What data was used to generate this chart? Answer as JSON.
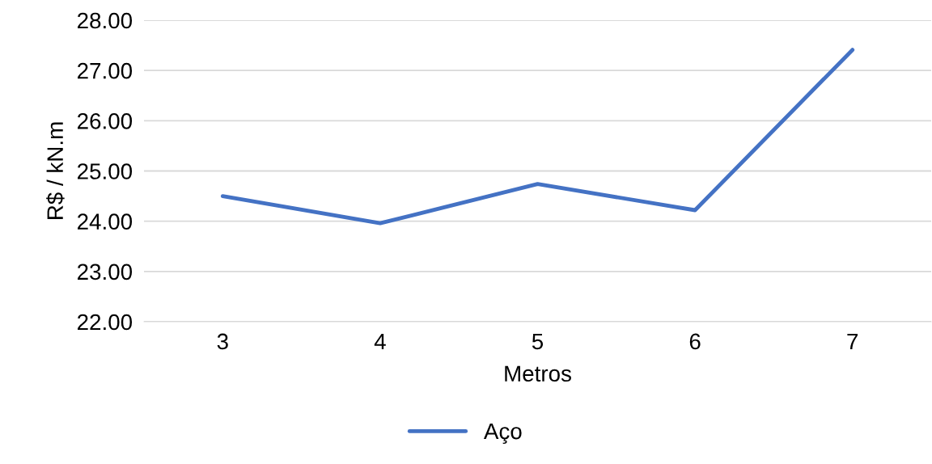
{
  "chart_data": {
    "type": "line",
    "xlabel": "Metros",
    "ylabel": "R$ / kN.m",
    "categories": [
      "3",
      "4",
      "5",
      "6",
      "7"
    ],
    "series": [
      {
        "name": "Aço",
        "color": "#4472c4",
        "values": [
          24.5,
          23.96,
          24.74,
          24.22,
          27.41
        ]
      }
    ],
    "ylim": [
      22,
      28
    ],
    "yticks": [
      {
        "value": 22,
        "label": "22.00"
      },
      {
        "value": 23,
        "label": "23.00"
      },
      {
        "value": 24,
        "label": "24.00"
      },
      {
        "value": 25,
        "label": "25.00"
      },
      {
        "value": 26,
        "label": "26.00"
      },
      {
        "value": 27,
        "label": "27.00"
      },
      {
        "value": 28,
        "label": "28.00"
      }
    ],
    "grid": "y",
    "legend": "bottom",
    "marker": "none",
    "line_style": "solid"
  }
}
